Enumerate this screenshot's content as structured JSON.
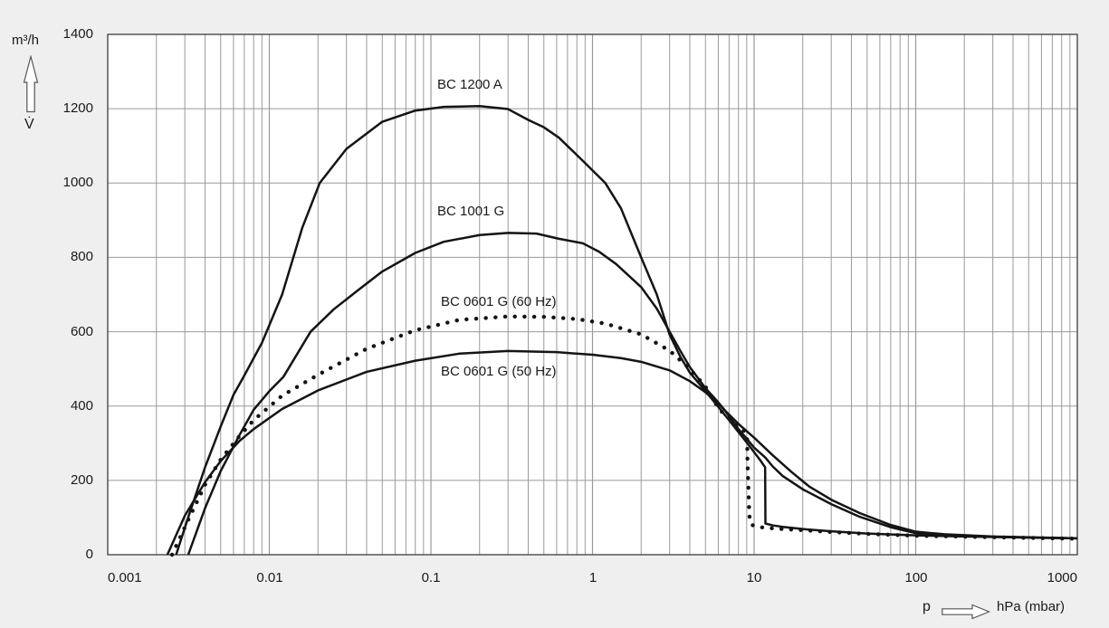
{
  "colors": {
    "background": "#efefef",
    "plot_background": "#ffffff",
    "grid": "#9a9a9a",
    "axis_border": "#3c3c3c",
    "curve": "#141414",
    "text": "#1a1a1a"
  },
  "y_axis": {
    "unit": "m³/h",
    "quantity_symbol": "V̇",
    "tick_values": [
      0,
      200,
      400,
      600,
      800,
      1000,
      1200,
      1400
    ],
    "tick_labels": [
      "0",
      "200",
      "400",
      "600",
      "800",
      "1000",
      "1200",
      "1400"
    ]
  },
  "x_axis": {
    "quantity_symbol": "p",
    "unit": "hPa (mbar)",
    "scale": "log",
    "tick_values": [
      0.001,
      0.01,
      0.1,
      1,
      10,
      100,
      1000
    ],
    "tick_labels": [
      "0.001",
      "0.01",
      "0.1",
      "1",
      "10",
      "100",
      "1000"
    ]
  },
  "chart_data": {
    "type": "line",
    "title": "",
    "xlabel": "p, hPa (mbar)",
    "ylabel": "V̇, m³/h",
    "x_scale": "log",
    "xlim": [
      0.001,
      1000
    ],
    "ylim": [
      0,
      1400
    ],
    "grid": true,
    "minor_grid_decades": true,
    "legend_position": "inline-labels",
    "series": [
      {
        "name": "BC 1200 A",
        "label": "BC 1200 A",
        "line_style": "solid",
        "label_anchor": [
          0.109,
          1264
        ],
        "points": [
          [
            0.00265,
            0
          ],
          [
            0.0032,
            110
          ],
          [
            0.004,
            235
          ],
          [
            0.005,
            345
          ],
          [
            0.006,
            430
          ],
          [
            0.007,
            482
          ],
          [
            0.009,
            570
          ],
          [
            0.012,
            700
          ],
          [
            0.016,
            880
          ],
          [
            0.0205,
            1000
          ],
          [
            0.03,
            1092
          ],
          [
            0.05,
            1165
          ],
          [
            0.08,
            1195
          ],
          [
            0.12,
            1205
          ],
          [
            0.2,
            1207
          ],
          [
            0.3,
            1199
          ],
          [
            0.4,
            1170
          ],
          [
            0.5,
            1150
          ],
          [
            0.62,
            1122
          ],
          [
            0.87,
            1060
          ],
          [
            1.2,
            1000
          ],
          [
            1.5,
            932
          ],
          [
            2,
            800
          ],
          [
            2.5,
            700
          ],
          [
            3,
            592
          ],
          [
            3.5,
            532
          ],
          [
            4,
            490
          ],
          [
            5,
            440
          ],
          [
            6,
            398
          ],
          [
            7,
            362
          ],
          [
            8,
            330
          ],
          [
            9,
            302
          ],
          [
            10,
            276
          ],
          [
            11,
            252
          ],
          [
            11.7,
            235
          ],
          [
            11.75,
            84
          ],
          [
            13,
            79
          ],
          [
            15,
            75
          ],
          [
            20,
            69
          ],
          [
            30,
            63
          ],
          [
            50,
            57
          ],
          [
            100,
            52
          ],
          [
            200,
            49
          ],
          [
            500,
            46
          ],
          [
            1000,
            44
          ]
        ]
      },
      {
        "name": "BC 1001 G",
        "label": "BC 1001 G",
        "line_style": "solid",
        "label_anchor": [
          0.109,
          923
        ],
        "points": [
          [
            0.00315,
            0
          ],
          [
            0.004,
            125
          ],
          [
            0.005,
            225
          ],
          [
            0.0065,
            320
          ],
          [
            0.008,
            390
          ],
          [
            0.01,
            440
          ],
          [
            0.0122,
            478
          ],
          [
            0.018,
            600
          ],
          [
            0.025,
            660
          ],
          [
            0.035,
            710
          ],
          [
            0.05,
            762
          ],
          [
            0.08,
            812
          ],
          [
            0.12,
            842
          ],
          [
            0.2,
            860
          ],
          [
            0.3,
            866
          ],
          [
            0.45,
            864
          ],
          [
            0.62,
            850
          ],
          [
            0.87,
            838
          ],
          [
            1.1,
            815
          ],
          [
            1.4,
            782
          ],
          [
            2,
            720
          ],
          [
            2.5,
            662
          ],
          [
            3,
            600
          ],
          [
            3.5,
            548
          ],
          [
            4,
            505
          ],
          [
            5,
            448
          ],
          [
            6,
            410
          ],
          [
            6.6,
            388
          ],
          [
            8,
            338
          ],
          [
            9,
            312
          ],
          [
            10,
            288
          ],
          [
            11.7,
            262
          ],
          [
            13,
            238
          ],
          [
            15,
            212
          ],
          [
            20,
            176
          ],
          [
            30,
            136
          ],
          [
            45,
            102
          ],
          [
            70,
            74
          ],
          [
            100,
            58
          ],
          [
            150,
            52
          ],
          [
            300,
            48
          ],
          [
            1000,
            44
          ]
        ]
      },
      {
        "name": "BC 0601 G (60 Hz)",
        "label": "BC 0601 G (60 Hz)",
        "line_style": "dotted",
        "label_anchor": [
          0.115,
          679
        ],
        "points": [
          [
            0.0025,
            0
          ],
          [
            0.0032,
            100
          ],
          [
            0.004,
            188
          ],
          [
            0.005,
            256
          ],
          [
            0.0065,
            318
          ],
          [
            0.008,
            362
          ],
          [
            0.012,
            428
          ],
          [
            0.02,
            484
          ],
          [
            0.04,
            554
          ],
          [
            0.08,
            604
          ],
          [
            0.15,
            632
          ],
          [
            0.3,
            641
          ],
          [
            0.5,
            640
          ],
          [
            0.8,
            634
          ],
          [
            1.2,
            622
          ],
          [
            2,
            593
          ],
          [
            3,
            549
          ],
          [
            4,
            500
          ],
          [
            5,
            452
          ],
          [
            6.1,
            390
          ],
          [
            7,
            368
          ],
          [
            8,
            345
          ],
          [
            8.7,
            332
          ],
          [
            9.05,
            322
          ],
          [
            9.1,
            250
          ],
          [
            9.2,
            190
          ],
          [
            9.3,
            130
          ],
          [
            9.4,
            90
          ],
          [
            9.7,
            80
          ],
          [
            10.5,
            75
          ],
          [
            12,
            72
          ],
          [
            15,
            69
          ],
          [
            20,
            66
          ],
          [
            30,
            61
          ],
          [
            50,
            56
          ],
          [
            100,
            51
          ],
          [
            300,
            47
          ],
          [
            1000,
            43
          ]
        ]
      },
      {
        "name": "BC 0601 G (50 Hz)",
        "label": "BC 0601 G (50 Hz)",
        "line_style": "solid",
        "label_anchor": [
          0.115,
          492
        ],
        "points": [
          [
            0.00234,
            0
          ],
          [
            0.003,
            105
          ],
          [
            0.004,
            195
          ],
          [
            0.005,
            252
          ],
          [
            0.0065,
            305
          ],
          [
            0.008,
            338
          ],
          [
            0.012,
            392
          ],
          [
            0.02,
            442
          ],
          [
            0.04,
            492
          ],
          [
            0.08,
            522
          ],
          [
            0.15,
            541
          ],
          [
            0.3,
            548
          ],
          [
            0.6,
            545
          ],
          [
            1,
            538
          ],
          [
            1.5,
            529
          ],
          [
            2,
            519
          ],
          [
            3,
            496
          ],
          [
            4,
            467
          ],
          [
            5,
            437
          ],
          [
            6,
            407
          ],
          [
            6.6,
            388
          ],
          [
            8,
            352
          ],
          [
            10,
            315
          ],
          [
            13,
            268
          ],
          [
            17,
            223
          ],
          [
            22,
            183
          ],
          [
            30,
            148
          ],
          [
            45,
            112
          ],
          [
            70,
            80
          ],
          [
            100,
            62
          ],
          [
            150,
            55
          ],
          [
            300,
            49
          ],
          [
            1000,
            44
          ]
        ]
      }
    ]
  }
}
